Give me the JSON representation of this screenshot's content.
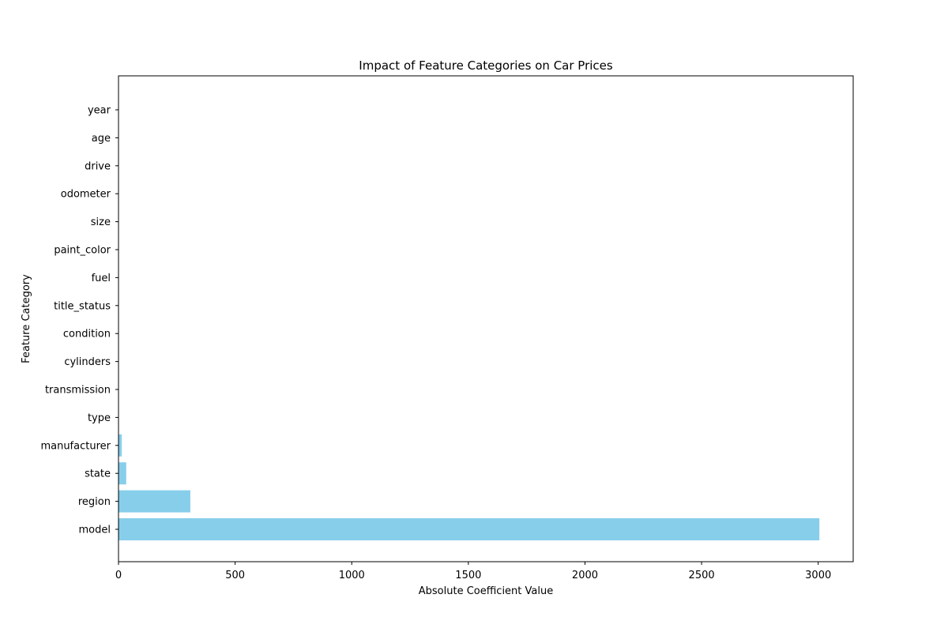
{
  "chart_data": {
    "type": "bar",
    "orientation": "horizontal",
    "title": "Impact of Feature Categories on Car Prices",
    "xlabel": "Absolute Coefficient Value",
    "ylabel": "Feature Category",
    "xlim": [
      0,
      3150
    ],
    "xticks": [
      0,
      500,
      1000,
      1500,
      2000,
      2500,
      3000
    ],
    "bar_color": "#87ceeb",
    "categories": [
      "model",
      "region",
      "state",
      "manufacturer",
      "type",
      "transmission",
      "cylinders",
      "condition",
      "title_status",
      "fuel",
      "paint_color",
      "size",
      "odometer",
      "drive",
      "age",
      "year"
    ],
    "values": [
      3005,
      308,
      33,
      14,
      1.5,
      1.2,
      1.0,
      0.9,
      0.8,
      0.7,
      0.6,
      0.5,
      0.4,
      0.3,
      0.2,
      0.1
    ]
  }
}
